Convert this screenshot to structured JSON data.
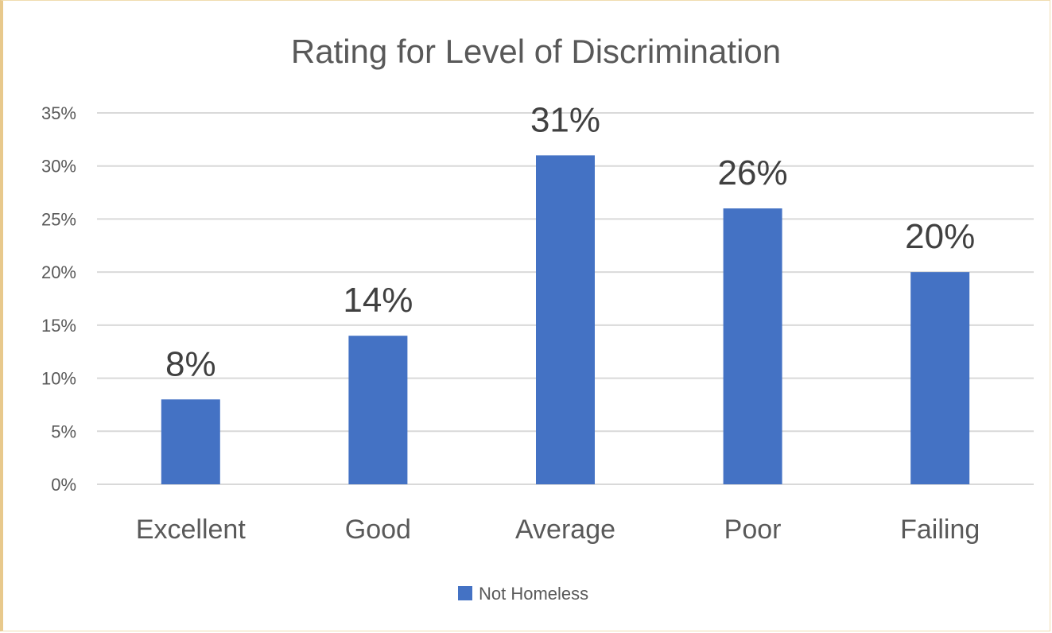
{
  "chart_data": {
    "type": "bar",
    "title": "Rating for Level of Discrimination",
    "categories": [
      "Excellent",
      "Good",
      "Average",
      "Poor",
      "Failing"
    ],
    "series": [
      {
        "name": "Not Homeless",
        "values": [
          8,
          14,
          31,
          26,
          20
        ],
        "data_labels": [
          "8%",
          "14%",
          "31%",
          "26%",
          "20%"
        ],
        "color": "#4472c4"
      }
    ],
    "ylim": [
      0,
      35
    ],
    "yticks": [
      "0%",
      "5%",
      "10%",
      "15%",
      "20%",
      "25%",
      "30%",
      "35%"
    ],
    "grid": true,
    "legend": "bottom"
  }
}
